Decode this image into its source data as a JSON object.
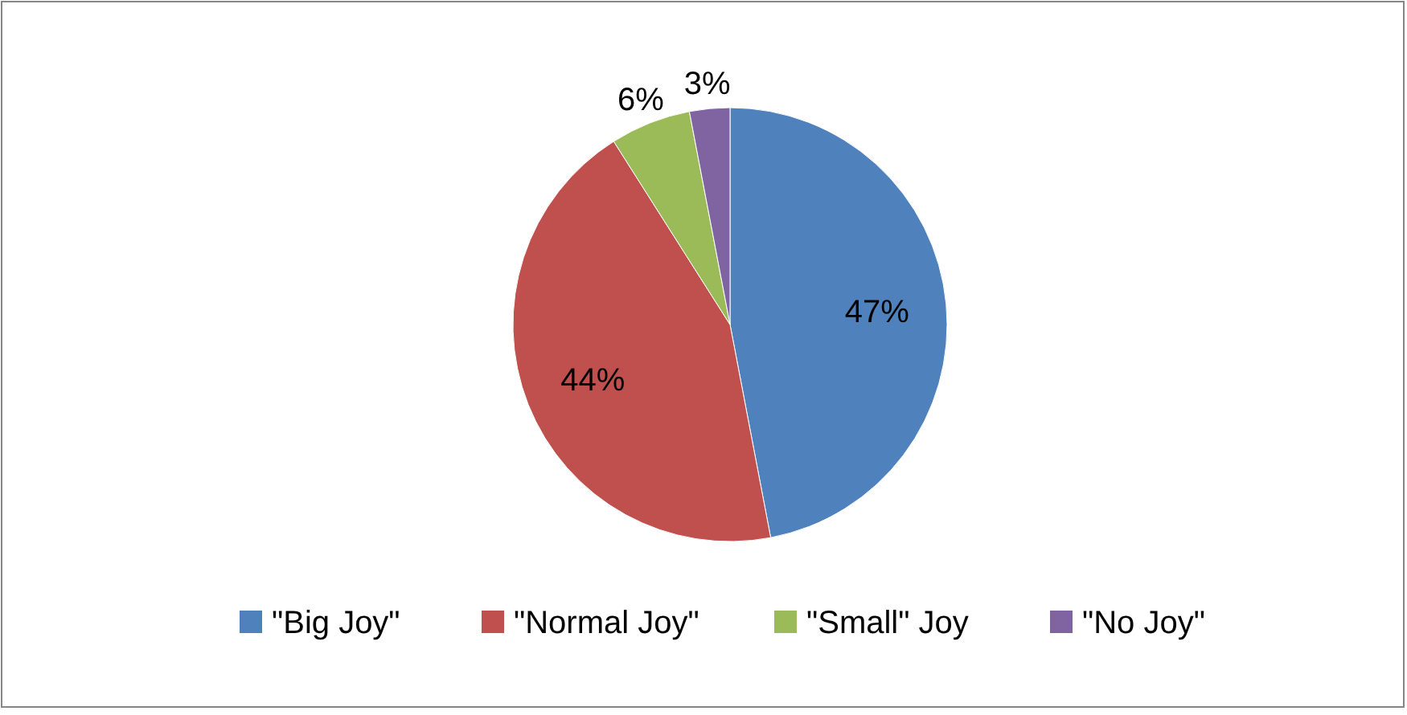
{
  "chart_data": {
    "type": "pie",
    "categories": [
      "\"Big Joy\"",
      "\"Normal Joy\"",
      "\"Small\" Joy",
      "\"No Joy\""
    ],
    "values": [
      47,
      44,
      6,
      3
    ],
    "colors": [
      "#4f81bd",
      "#c0504d",
      "#9bbb59",
      "#8064a2"
    ],
    "value_labels": [
      "47%",
      "44%",
      "6%",
      "3%"
    ],
    "legend": "bottom"
  }
}
